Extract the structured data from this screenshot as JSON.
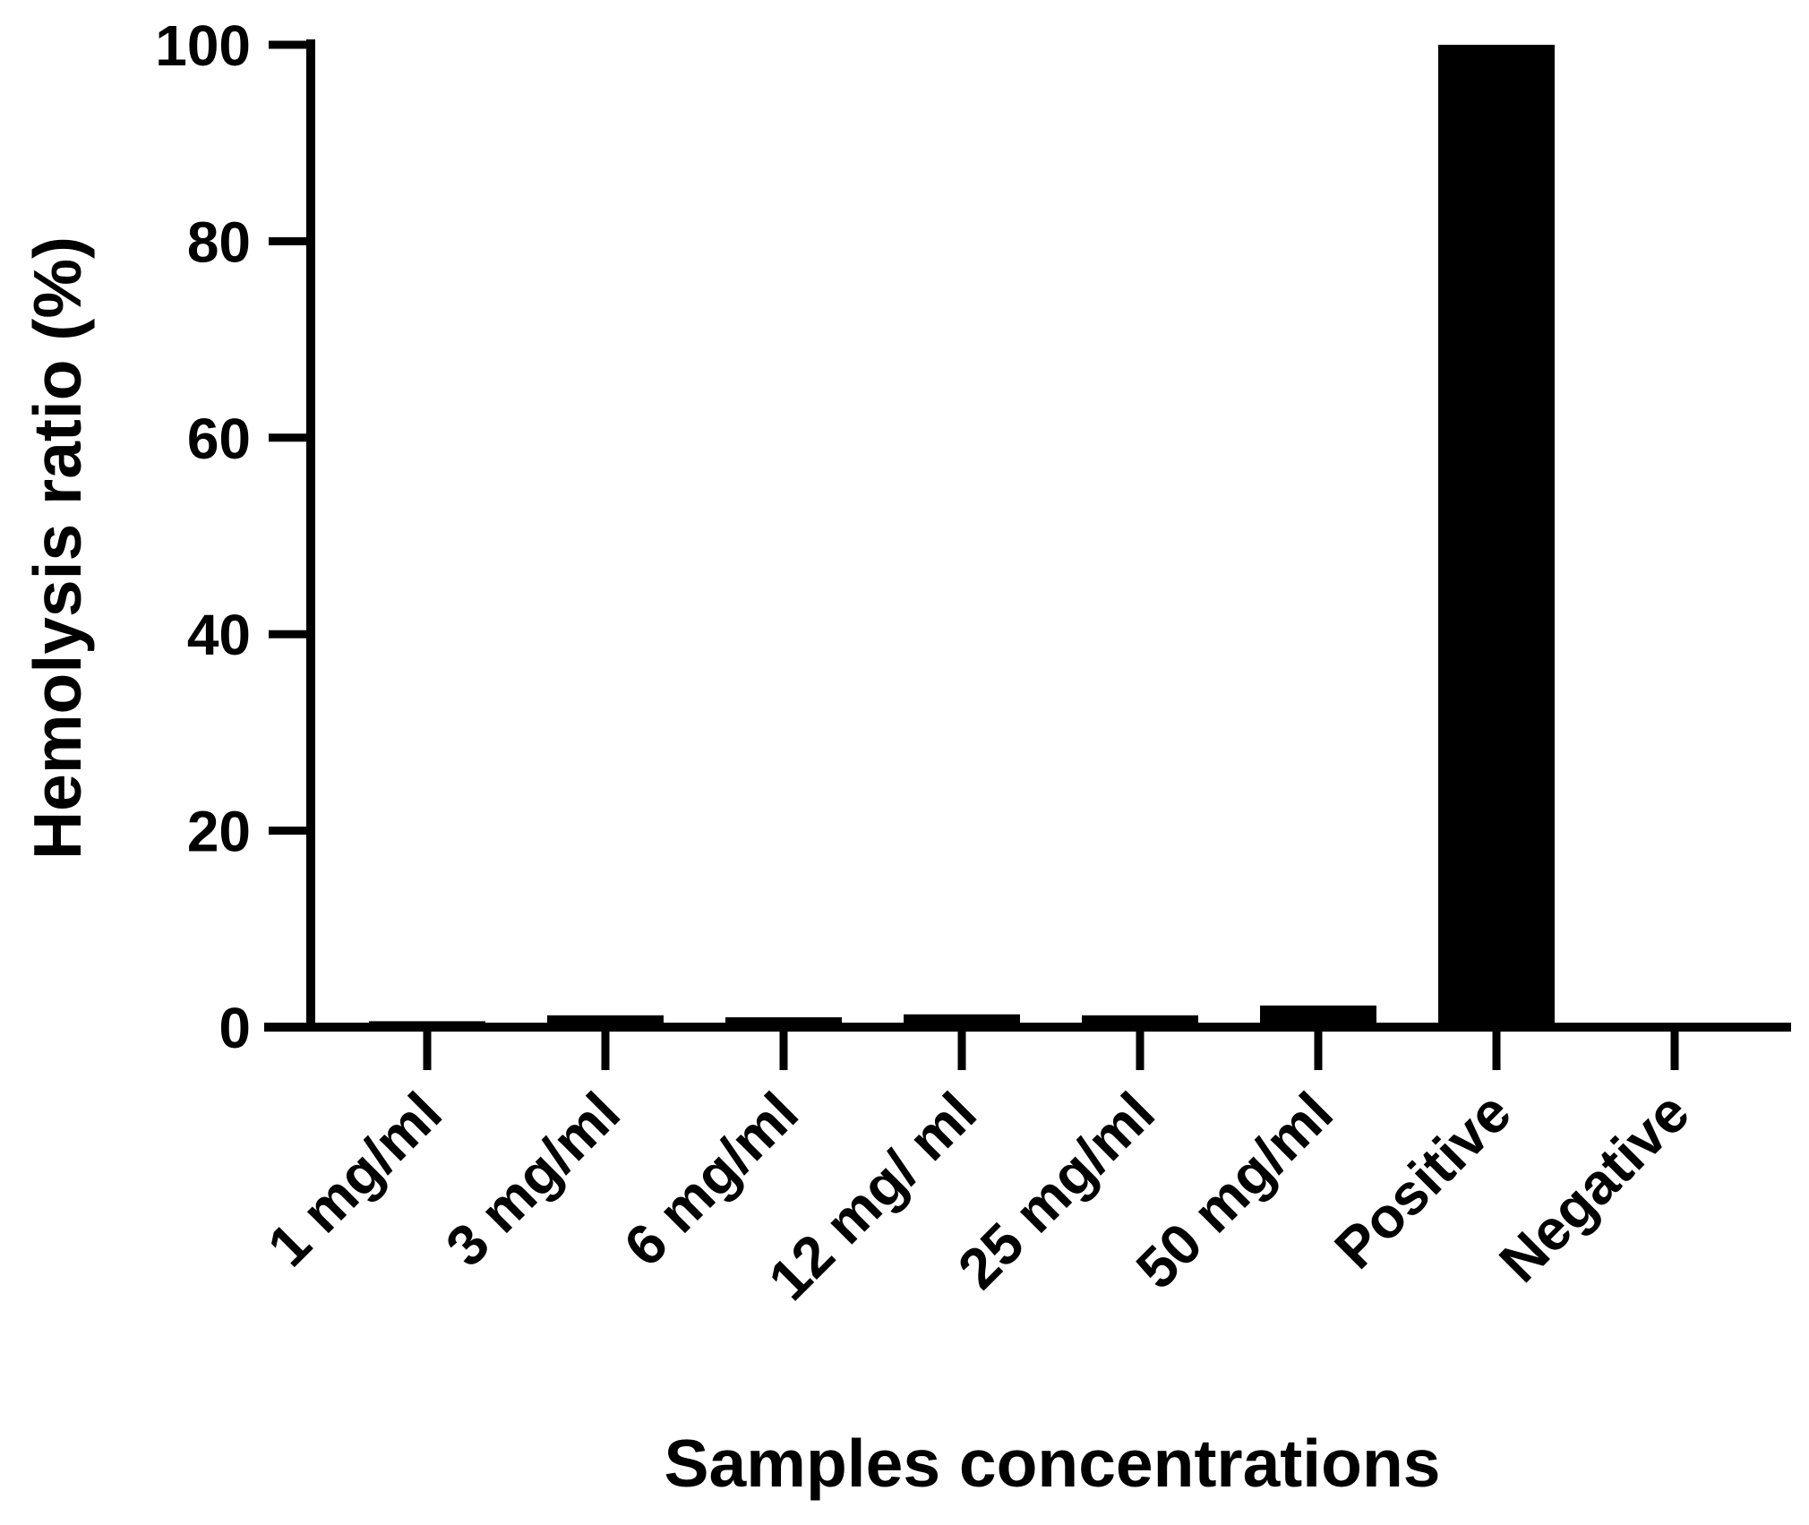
{
  "chart_data": {
    "type": "bar",
    "categories": [
      "1 mg/ml",
      "3 mg/ml",
      "6 mg/ml",
      "12 mg/ ml",
      "25 mg/ml",
      "50 mg/ml",
      "Positive",
      "Negative"
    ],
    "values": [
      0.6,
      1.2,
      1.0,
      1.3,
      1.2,
      2.2,
      100,
      0
    ],
    "xlabel": "Samples concentrations",
    "ylabel": "Hemolysis ratio (%)",
    "ylim": [
      0,
      100
    ],
    "yticks": [
      0,
      20,
      40,
      60,
      80,
      100
    ],
    "bar_color": "#000000",
    "grid": false,
    "legend": "none"
  }
}
